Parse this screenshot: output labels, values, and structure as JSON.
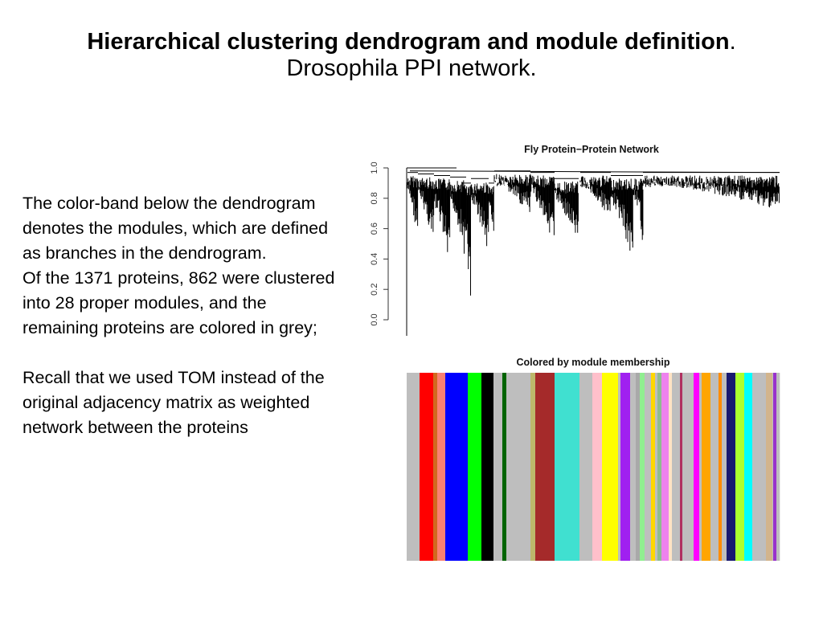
{
  "slide": {
    "title_bold": "Hierarchical clustering dendrogram and module definition",
    "title_period": ".",
    "subtitle": "Drosophila PPI network.",
    "paragraph1": "The color-band below the dendrogram denotes the modules, which are defined as branches in the dendrogram.",
    "paragraph2": "Of the 1371 proteins, 862 were clustered into 28 proper modules, and the remaining proteins are colored in grey;",
    "paragraph3": "Recall that we used TOM instead of the original adjacency matrix as weighted network between the proteins"
  },
  "chart_data": [
    {
      "type": "dendrogram",
      "title": "Fly Protein−Protein Network",
      "ylabel": "",
      "ylim": [
        0,
        1
      ],
      "yticks": [
        "0.0",
        "0.2",
        "0.4",
        "0.6",
        "0.8",
        "1.0"
      ],
      "n_leaves": 1371
    },
    {
      "type": "color-band",
      "title": "Colored by module membership",
      "segments": [
        {
          "color": "#bebebe",
          "size": 16
        },
        {
          "color": "#ff0000",
          "size": 17
        },
        {
          "color": "#d2691e",
          "size": 5
        },
        {
          "color": "#fa8072",
          "size": 10
        },
        {
          "color": "#0000ff",
          "size": 28
        },
        {
          "color": "#00ff00",
          "size": 17
        },
        {
          "color": "#000000",
          "size": 15
        },
        {
          "color": "#bebebe",
          "size": 11
        },
        {
          "color": "#006400",
          "size": 5
        },
        {
          "color": "#bebebe",
          "size": 30
        },
        {
          "color": "#bdb76b",
          "size": 6
        },
        {
          "color": "#a52a2a",
          "size": 24
        },
        {
          "color": "#40e0d0",
          "size": 31
        },
        {
          "color": "#bebebe",
          "size": 16
        },
        {
          "color": "#ffc0cb",
          "size": 12
        },
        {
          "color": "#ffff00",
          "size": 20
        },
        {
          "color": "#bebebe",
          "size": 3
        },
        {
          "color": "#a020f0",
          "size": 12
        },
        {
          "color": "#bebebe",
          "size": 7
        },
        {
          "color": "#a9a9a9",
          "size": 5
        },
        {
          "color": "#90ee90",
          "size": 6
        },
        {
          "color": "#bebebe",
          "size": 8
        },
        {
          "color": "#ffd700",
          "size": 5
        },
        {
          "color": "#bebebe",
          "size": 3
        },
        {
          "color": "#8fbc8f",
          "size": 5
        },
        {
          "color": "#ee82ee",
          "size": 9
        },
        {
          "color": "#ffe4c4",
          "size": 4
        },
        {
          "color": "#bebebe",
          "size": 10
        },
        {
          "color": "#b03060",
          "size": 3
        },
        {
          "color": "#bebebe",
          "size": 14
        },
        {
          "color": "#ff00ff",
          "size": 7
        },
        {
          "color": "#bebebe",
          "size": 3
        },
        {
          "color": "#ffa500",
          "size": 11
        },
        {
          "color": "#bebebe",
          "size": 10
        },
        {
          "color": "#ff8c00",
          "size": 4
        },
        {
          "color": "#bebebe",
          "size": 6
        },
        {
          "color": "#191970",
          "size": 11
        },
        {
          "color": "#adff2f",
          "size": 11
        },
        {
          "color": "#00ffff",
          "size": 10
        },
        {
          "color": "#bebebe",
          "size": 17
        },
        {
          "color": "#d2b48c",
          "size": 8
        },
        {
          "color": "#bebebe",
          "size": 1
        },
        {
          "color": "#9932cc",
          "size": 4
        },
        {
          "color": "#bebebe",
          "size": 4
        }
      ]
    }
  ]
}
